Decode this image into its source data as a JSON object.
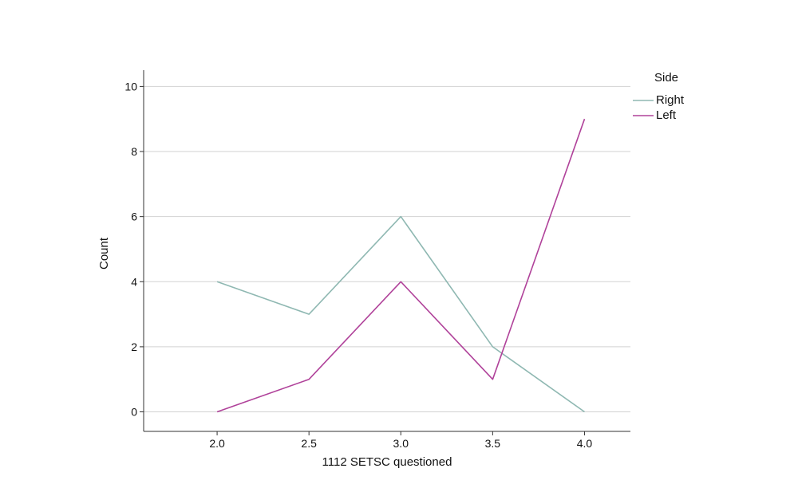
{
  "chart_data": {
    "type": "line",
    "xlabel": "1112 SETSC questioned",
    "ylabel": "Count",
    "xlim": [
      1.6,
      4.25
    ],
    "ylim": [
      -0.6,
      10.5
    ],
    "x_ticks": [
      "2.0",
      "2.5",
      "3.0",
      "3.5",
      "4.0"
    ],
    "y_ticks": [
      "0",
      "2",
      "4",
      "6",
      "8",
      "10"
    ],
    "grid": "horizontal",
    "legend": {
      "title": "Side",
      "placement": "right"
    },
    "series": [
      {
        "name": "Right",
        "color": "#8fb8b2",
        "x": [
          2.0,
          2.5,
          3.0,
          3.5,
          4.0
        ],
        "y": [
          4,
          3,
          6,
          2,
          0
        ]
      },
      {
        "name": "Left",
        "color": "#b0429a",
        "x": [
          2.0,
          2.5,
          3.0,
          3.5,
          4.0
        ],
        "y": [
          0,
          1,
          4,
          1,
          9
        ]
      }
    ]
  }
}
